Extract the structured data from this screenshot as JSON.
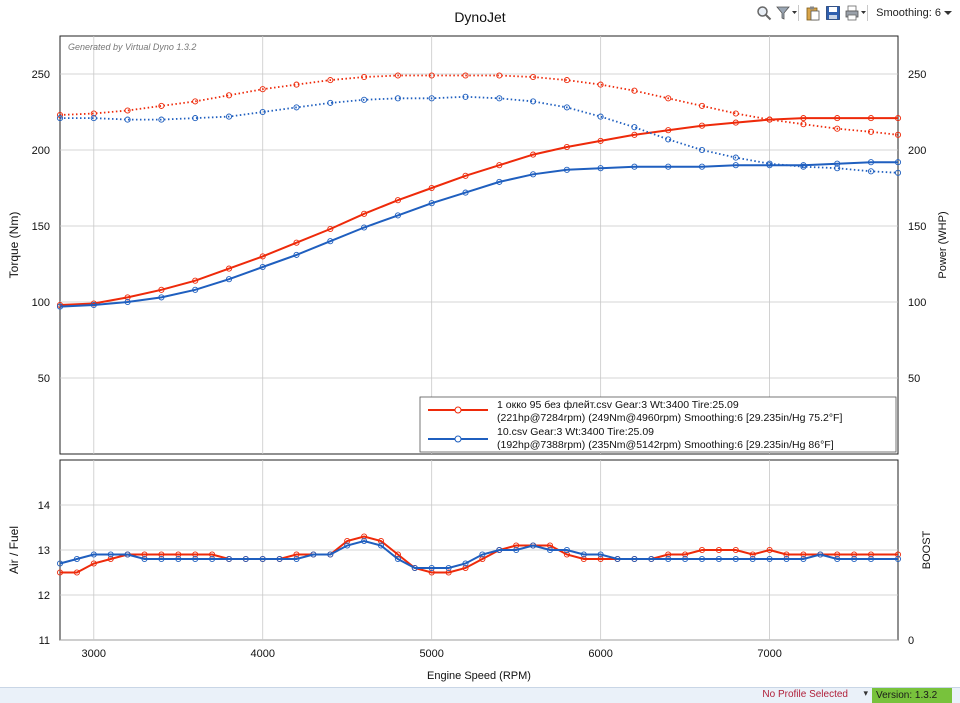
{
  "toolbar": {
    "smoothing_label": "Smoothing: 6",
    "icons": [
      "zoom-icon",
      "filter-icon",
      "paste-icon",
      "save-icon",
      "print-icon"
    ]
  },
  "status_bar": {
    "profile": "No Profile Selected",
    "version": "Version: 1.3.2"
  },
  "colors": {
    "run1": "#ee2a0a",
    "run2": "#1f5fbf",
    "grid": "#c8c8c8",
    "version_badge": "#78c23c",
    "profile_text": "#b0203a"
  },
  "chart_data": [
    {
      "type": "line",
      "title": "DynoJet",
      "watermark": "Generated by Virtual Dyno 1.3.2",
      "ylabel": "Torque (Nm)",
      "y2label": "Power (WHP)",
      "xlim": [
        2800,
        7760
      ],
      "ylim": [
        0,
        275
      ],
      "y2lim": [
        0,
        275
      ],
      "x_ticks": [
        3000,
        4000,
        5000,
        6000,
        7000
      ],
      "y_ticks": [
        50,
        100,
        150,
        200,
        250
      ],
      "y2_ticks": [
        50,
        100,
        150,
        200,
        250
      ],
      "grid": true,
      "legend_position": "bottom-right",
      "x": [
        2800,
        3000,
        3200,
        3400,
        3600,
        3800,
        4000,
        4200,
        4400,
        4600,
        4800,
        5000,
        5200,
        5400,
        5600,
        5800,
        6000,
        6200,
        6400,
        6600,
        6800,
        7000,
        7200,
        7400,
        7600,
        7760
      ],
      "series": [
        {
          "legend_line1": "1 окко 95 без флейт.csv Gear:3 Wt:3400 Tire:25.09",
          "legend_line2": "(221hp@7284rpm) (249Nm@4960rpm) Smoothing:6 [29.235in/Hg 75.2°F]",
          "color": "#ee2a0a",
          "power": [
            98,
            99,
            103,
            108,
            114,
            122,
            130,
            139,
            148,
            158,
            167,
            175,
            183,
            190,
            197,
            202,
            206,
            210,
            213,
            216,
            218,
            220,
            221,
            221,
            221,
            221
          ],
          "torque": [
            223,
            224,
            226,
            229,
            232,
            236,
            240,
            243,
            246,
            248,
            249,
            249,
            249,
            249,
            248,
            246,
            243,
            239,
            234,
            229,
            224,
            220,
            217,
            214,
            212,
            210
          ]
        },
        {
          "legend_line1": "10.csv Gear:3 Wt:3400 Tire:25.09",
          "legend_line2": "(192hp@7388rpm) (235Nm@5142rpm) Smoothing:6 [29.235in/Hg 86°F]",
          "color": "#1f5fbf",
          "power": [
            97,
            98,
            100,
            103,
            108,
            115,
            123,
            131,
            140,
            149,
            157,
            165,
            172,
            179,
            184,
            187,
            188,
            189,
            189,
            189,
            190,
            190,
            190,
            191,
            192,
            192
          ],
          "torque": [
            221,
            221,
            220,
            220,
            221,
            222,
            225,
            228,
            231,
            233,
            234,
            234,
            235,
            234,
            232,
            228,
            222,
            215,
            207,
            200,
            195,
            191,
            189,
            188,
            186,
            185
          ]
        }
      ]
    },
    {
      "type": "line",
      "ylabel": "Air / Fuel",
      "y2label": "BOOST",
      "xlabel": "Engine Speed (RPM)",
      "xlim": [
        2800,
        7760
      ],
      "ylim": [
        11,
        15
      ],
      "y_ticks": [
        11,
        12,
        13,
        14
      ],
      "y2_ticks": [
        0
      ],
      "x_ticks": [
        3000,
        4000,
        5000,
        6000,
        7000
      ],
      "grid": true,
      "x": [
        2800,
        2900,
        3000,
        3100,
        3200,
        3300,
        3400,
        3500,
        3600,
        3700,
        3800,
        3900,
        4000,
        4100,
        4200,
        4300,
        4400,
        4500,
        4600,
        4700,
        4800,
        4900,
        5000,
        5100,
        5200,
        5300,
        5400,
        5500,
        5600,
        5700,
        5800,
        5900,
        6000,
        6100,
        6200,
        6300,
        6400,
        6500,
        6600,
        6700,
        6800,
        6900,
        7000,
        7100,
        7200,
        7300,
        7400,
        7500,
        7600,
        7760
      ],
      "series": [
        {
          "color": "#ee2a0a",
          "values": [
            12.5,
            12.5,
            12.7,
            12.8,
            12.9,
            12.9,
            12.9,
            12.9,
            12.9,
            12.9,
            12.8,
            12.8,
            12.8,
            12.8,
            12.9,
            12.9,
            12.9,
            13.2,
            13.3,
            13.2,
            12.9,
            12.6,
            12.5,
            12.5,
            12.6,
            12.8,
            13.0,
            13.1,
            13.1,
            13.1,
            12.9,
            12.8,
            12.8,
            12.8,
            12.8,
            12.8,
            12.9,
            12.9,
            13.0,
            13.0,
            13.0,
            12.9,
            13.0,
            12.9,
            12.9,
            12.9,
            12.9,
            12.9,
            12.9,
            12.9
          ]
        },
        {
          "color": "#1f5fbf",
          "values": [
            12.7,
            12.8,
            12.9,
            12.9,
            12.9,
            12.8,
            12.8,
            12.8,
            12.8,
            12.8,
            12.8,
            12.8,
            12.8,
            12.8,
            12.8,
            12.9,
            12.9,
            13.1,
            13.2,
            13.1,
            12.8,
            12.6,
            12.6,
            12.6,
            12.7,
            12.9,
            13.0,
            13.0,
            13.1,
            13.0,
            13.0,
            12.9,
            12.9,
            12.8,
            12.8,
            12.8,
            12.8,
            12.8,
            12.8,
            12.8,
            12.8,
            12.8,
            12.8,
            12.8,
            12.8,
            12.9,
            12.8,
            12.8,
            12.8,
            12.8
          ]
        }
      ]
    }
  ]
}
